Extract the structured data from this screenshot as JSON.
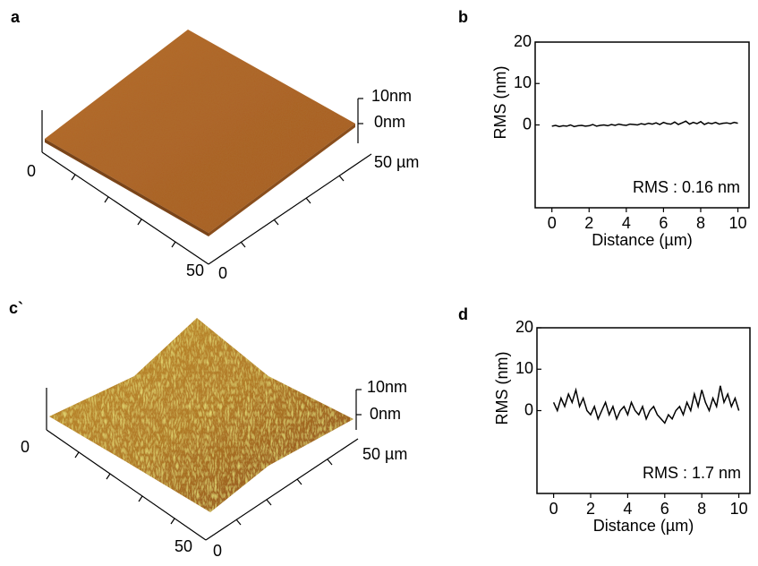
{
  "panel_labels": [
    "a",
    "b",
    "c`",
    "d"
  ],
  "afm_images": [
    {
      "z_top": "10nm",
      "z_zero": "0nm",
      "left_start": "0",
      "left_end": "50",
      "right_start": "0",
      "right_end": "50 µm"
    },
    {
      "z_top": "10nm",
      "z_zero": "0nm",
      "left_start": "0",
      "left_end": "50",
      "right_start": "0",
      "right_end": "50 µm"
    }
  ],
  "chart_data": [
    {
      "type": "line",
      "ylabel": "RMS (nm)",
      "xlabel": "Distance (µm)",
      "annotation": "RMS : 0.16 nm",
      "x": [
        0,
        0.2,
        0.4,
        0.6,
        0.8,
        1,
        1.2,
        1.4,
        1.6,
        1.8,
        2,
        2.2,
        2.4,
        2.6,
        2.8,
        3,
        3.2,
        3.4,
        3.6,
        3.8,
        4,
        4.2,
        4.4,
        4.6,
        4.8,
        5,
        5.2,
        5.4,
        5.6,
        5.8,
        6,
        6.2,
        6.4,
        6.6,
        6.8,
        7,
        7.2,
        7.4,
        7.6,
        7.8,
        8,
        8.2,
        8.4,
        8.6,
        8.8,
        9,
        9.2,
        9.4,
        9.6,
        9.8,
        10
      ],
      "series": [
        {
          "color": "#000000",
          "values": [
            -0.3,
            -0.1,
            -0.4,
            -0.2,
            -0.3,
            0,
            -0.4,
            -0.2,
            -0.1,
            -0.3,
            -0.2,
            0.1,
            -0.3,
            -0.1,
            0,
            -0.2,
            0.1,
            -0.1,
            0.2,
            0,
            -0.1,
            0.2,
            0.1,
            0,
            0.3,
            0.1,
            0.4,
            0.2,
            0.5,
            0.1,
            0.6,
            0.3,
            0.2,
            0.7,
            0.1,
            0.5,
            0.9,
            0.2,
            0.6,
            0.3,
            0.8,
            0.1,
            0.5,
            0.3,
            0.6,
            0.2,
            0.4,
            0.5,
            0.3,
            0.6,
            0.4
          ]
        }
      ],
      "xlim": [
        -0.9,
        10.6
      ],
      "xticks": [
        0,
        2,
        4,
        6,
        8,
        10
      ],
      "ylim": [
        -20,
        20
      ],
      "yticks": [
        0,
        10,
        20
      ]
    },
    {
      "type": "line",
      "ylabel": "RMS (nm)",
      "xlabel": "Distance (µm)",
      "annotation": "RMS : 1.7 nm",
      "x": [
        0,
        0.2,
        0.4,
        0.6,
        0.8,
        1,
        1.2,
        1.4,
        1.6,
        1.8,
        2,
        2.2,
        2.4,
        2.6,
        2.8,
        3,
        3.2,
        3.4,
        3.6,
        3.8,
        4,
        4.2,
        4.4,
        4.6,
        4.8,
        5,
        5.2,
        5.4,
        5.6,
        5.8,
        6,
        6.2,
        6.4,
        6.6,
        6.8,
        7,
        7.2,
        7.4,
        7.6,
        7.8,
        8,
        8.2,
        8.4,
        8.6,
        8.8,
        9,
        9.2,
        9.4,
        9.6,
        9.8,
        10
      ],
      "series": [
        {
          "color": "#000000",
          "values": [
            2,
            0,
            3,
            1,
            4,
            2,
            5,
            1,
            3,
            0,
            -1,
            1,
            -2,
            0,
            2,
            -1,
            1,
            -2,
            0,
            1,
            -1,
            2,
            0,
            -1,
            1,
            -2,
            0,
            1,
            -1,
            -2,
            -3,
            -1,
            -2,
            0,
            1,
            -1,
            2,
            0,
            4,
            1,
            5,
            2,
            0,
            3,
            1,
            6,
            2,
            4,
            1,
            3,
            0
          ]
        }
      ],
      "xlim": [
        -0.9,
        10.6
      ],
      "xticks": [
        0,
        2,
        4,
        6,
        8,
        10
      ],
      "ylim": [
        -20,
        20
      ],
      "yticks": [
        0,
        10,
        20
      ]
    }
  ]
}
